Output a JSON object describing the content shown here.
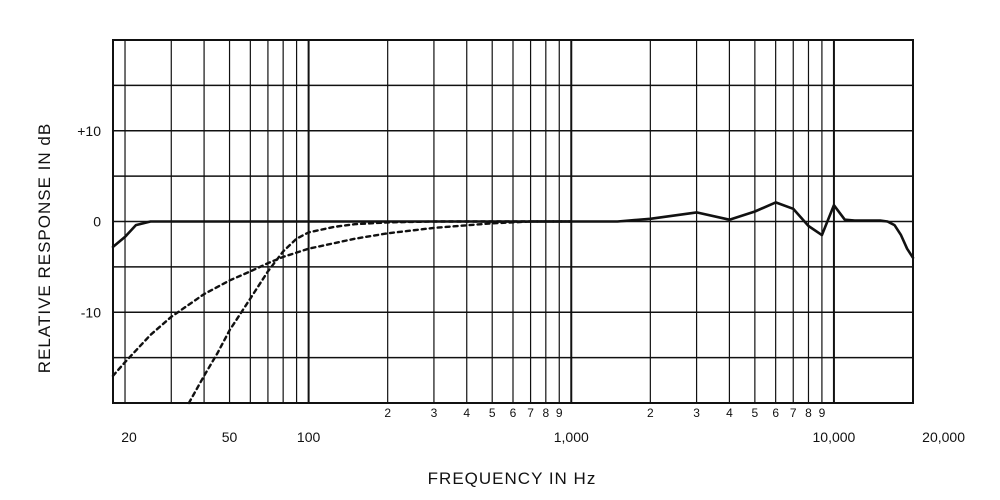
{
  "chart_data": {
    "type": "line",
    "xlabel": "FREQUENCY IN Hz",
    "ylabel": "RELATIVE RESPONSE IN dB",
    "x_scale": "log",
    "xlim": [
      18,
      20000
    ],
    "ylim": [
      -20,
      20
    ],
    "grid": true,
    "legend": "none",
    "y_tick_labels": [
      {
        "value": 10,
        "label": "+10"
      },
      {
        "value": 0,
        "label": "0"
      },
      {
        "value": -10,
        "label": "-10"
      }
    ],
    "x_major_labels": [
      {
        "value": 20,
        "label": "20"
      },
      {
        "value": 50,
        "label": "50"
      },
      {
        "value": 100,
        "label": "100"
      },
      {
        "value": 1000,
        "label": "1,000"
      },
      {
        "value": 10000,
        "label": "10,000"
      },
      {
        "value": 20000,
        "label": "20,000"
      }
    ],
    "x_minor_labels": [
      {
        "value": 200,
        "label": "2"
      },
      {
        "value": 300,
        "label": "3"
      },
      {
        "value": 400,
        "label": "4"
      },
      {
        "value": 500,
        "label": "5"
      },
      {
        "value": 600,
        "label": "6"
      },
      {
        "value": 700,
        "label": "7"
      },
      {
        "value": 800,
        "label": "8"
      },
      {
        "value": 900,
        "label": "9"
      },
      {
        "value": 2000,
        "label": "2"
      },
      {
        "value": 3000,
        "label": "3"
      },
      {
        "value": 4000,
        "label": "4"
      },
      {
        "value": 5000,
        "label": "5"
      },
      {
        "value": 6000,
        "label": "6"
      },
      {
        "value": 7000,
        "label": "7"
      },
      {
        "value": 8000,
        "label": "8"
      },
      {
        "value": 9000,
        "label": "9"
      }
    ],
    "series": [
      {
        "style": "solid",
        "x": [
          18,
          20,
          22,
          25,
          30,
          50,
          100,
          1000,
          1500,
          2000,
          3000,
          4000,
          5000,
          6000,
          7000,
          8000,
          9000,
          10000,
          11000,
          12000,
          13000,
          14000,
          15000,
          16000,
          17000,
          18000,
          19000,
          20000
        ],
        "y": [
          -2.8,
          -1.7,
          -0.4,
          0,
          0,
          0,
          0,
          0,
          0,
          0.3,
          1.0,
          0.2,
          1.1,
          2.1,
          1.4,
          -0.5,
          -1.5,
          1.8,
          0.2,
          0.1,
          0.1,
          0.1,
          0.1,
          0,
          -0.4,
          -1.5,
          -3.0,
          -4.0
        ]
      },
      {
        "style": "dashed",
        "x": [
          35,
          40,
          45,
          50,
          60,
          70,
          80,
          90,
          100,
          125,
          150,
          200,
          300,
          500,
          1000
        ],
        "y": [
          -20,
          -17,
          -14.5,
          -12,
          -8.5,
          -5.5,
          -3.3,
          -1.9,
          -1.2,
          -0.6,
          -0.3,
          -0.1,
          0,
          0,
          0
        ]
      },
      {
        "style": "dashed",
        "x": [
          18,
          20,
          25,
          30,
          40,
          50,
          60,
          70,
          80,
          100,
          150,
          200,
          300,
          500,
          700,
          1000
        ],
        "y": [
          -17,
          -15.5,
          -12.5,
          -10.5,
          -8,
          -6.5,
          -5.5,
          -4.6,
          -3.9,
          -3.0,
          -1.9,
          -1.3,
          -0.7,
          -0.2,
          0,
          0
        ]
      }
    ]
  }
}
